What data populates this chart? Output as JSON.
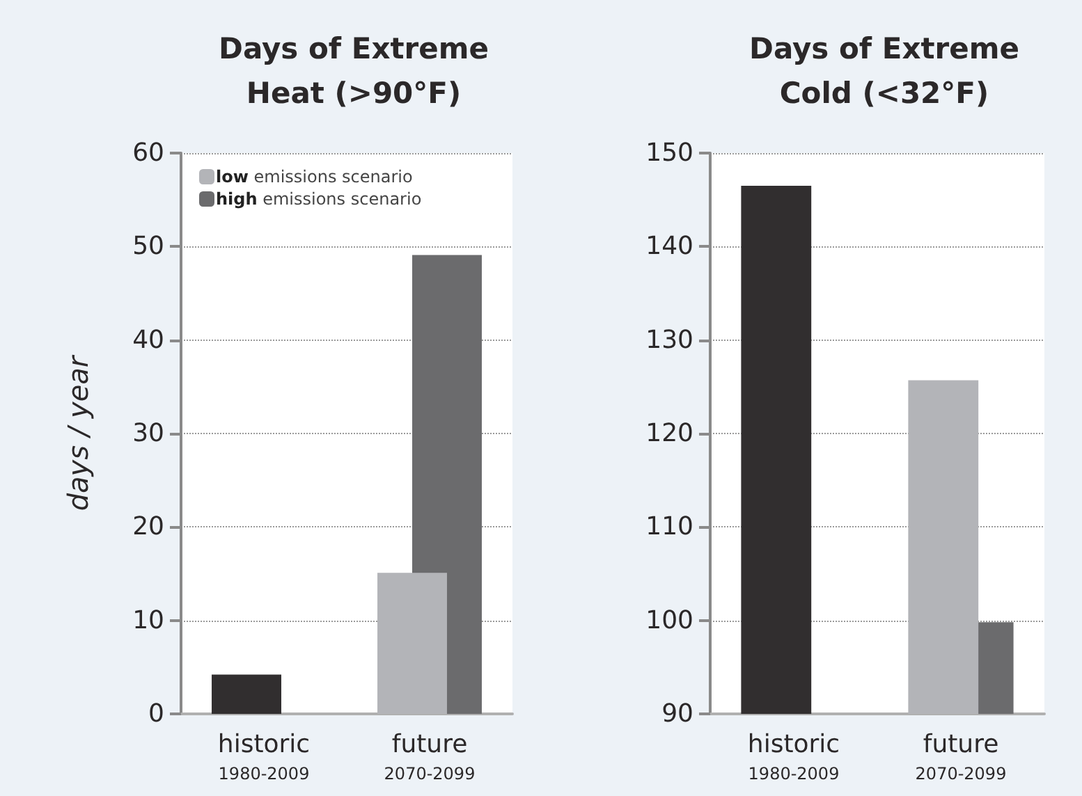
{
  "chart_data": [
    {
      "type": "bar",
      "title": "Days of Extreme\nHeat (>90°F)",
      "ylabel": "days / year",
      "categories": [
        "historic\n1980-2009",
        "future\n2070-2099"
      ],
      "series": [
        {
          "color": "#312e2f",
          "values": [
            4.2,
            null
          ]
        },
        {
          "name": "low emissions scenario",
          "color": "#b3b4b8",
          "values": [
            null,
            15.1
          ]
        },
        {
          "name": "high emissions scenario",
          "color": "#6b6b6d",
          "values": [
            null,
            49.1
          ]
        }
      ],
      "ylim": [
        0,
        60
      ],
      "yticks": [
        0,
        10,
        20,
        30,
        40,
        50,
        60
      ],
      "grid": "y",
      "legend": "top left"
    },
    {
      "type": "bar",
      "title": "Days of Extreme\nCold (<32°F)",
      "categories": [
        "historic\n1980-2009",
        "future\n2070-2099"
      ],
      "series": [
        {
          "color": "#312e2f",
          "values": [
            146.5,
            null
          ]
        },
        {
          "color": "#b3b4b8",
          "values": [
            null,
            125.7
          ]
        },
        {
          "color": "#6b6b6d",
          "values": [
            null,
            99.8
          ]
        }
      ],
      "ylim": [
        90,
        150
      ],
      "yticks": [
        90,
        100,
        110,
        120,
        130,
        140,
        150
      ],
      "grid": "y"
    }
  ]
}
